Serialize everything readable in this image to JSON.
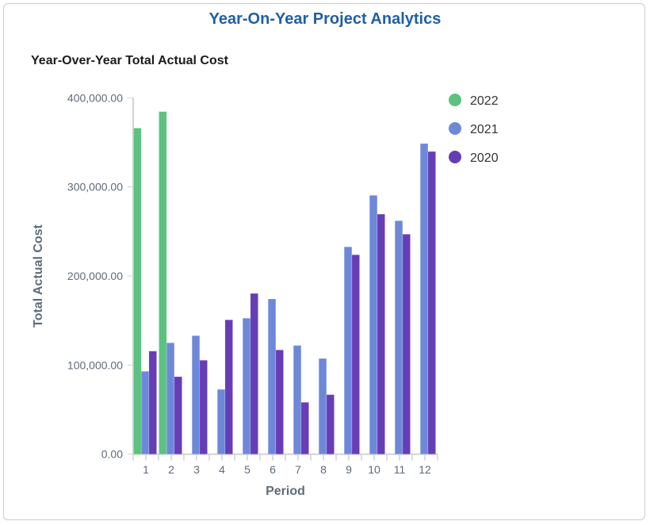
{
  "header": {
    "title": "Year-On-Year Project Analytics"
  },
  "chart_data": {
    "type": "bar",
    "title": "Year-Over-Year Total Actual Cost",
    "xlabel": "Period",
    "ylabel": "Total Actual Cost",
    "ylim": [
      0,
      400000
    ],
    "yticks": [
      "0.00",
      "100,000.00",
      "200,000.00",
      "300,000.00",
      "400,000.00"
    ],
    "categories": [
      "1",
      "2",
      "3",
      "4",
      "5",
      "6",
      "7",
      "8",
      "9",
      "10",
      "11",
      "12"
    ],
    "legend_position": "top-right",
    "grid": false,
    "series": [
      {
        "name": "2022",
        "color": "#5bc27f",
        "values": [
          366000,
          384500,
          null,
          null,
          null,
          null,
          null,
          null,
          null,
          null,
          null,
          null
        ]
      },
      {
        "name": "2021",
        "color": "#6e88d9",
        "values": [
          93000,
          125000,
          133000,
          72700,
          152600,
          174200,
          122000,
          107400,
          232700,
          290500,
          262000,
          348600
        ]
      },
      {
        "name": "2020",
        "color": "#673db6",
        "values": [
          115700,
          87000,
          105400,
          150800,
          180400,
          117000,
          58200,
          66800,
          223800,
          269400,
          246900,
          339700
        ]
      }
    ]
  }
}
